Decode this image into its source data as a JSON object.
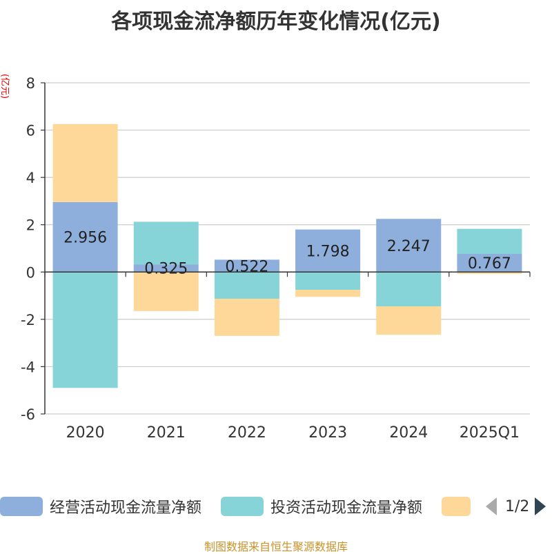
{
  "title": "各项现金流净额历年变化情况(亿元)",
  "unit_label": "(亿元)",
  "footer": "制图数据来自恒生聚源数据库",
  "legend": {
    "items": [
      {
        "label": "经营活动现金流量净额",
        "color": "#8eaedb"
      },
      {
        "label": "投资活动现金流量净额",
        "color": "#86d4d8"
      },
      {
        "label": "",
        "color": "#fed898"
      }
    ],
    "page_text": "1/2"
  },
  "chart_data": {
    "type": "bar",
    "stacked": true,
    "categories": [
      "2020",
      "2021",
      "2022",
      "2023",
      "2024",
      "2025Q1"
    ],
    "ylim": [
      -6,
      8
    ],
    "yticks": [
      8,
      6,
      4,
      2,
      0,
      -2,
      -4,
      -6
    ],
    "grid": true,
    "legend_position": "bottom",
    "series": [
      {
        "name": "经营活动现金流量净额",
        "color": "#8eaedb",
        "values": [
          2.956,
          0.325,
          0.522,
          1.798,
          2.247,
          0.767
        ],
        "labels": [
          "2.956",
          "0.325",
          "0.522",
          "1.798",
          "2.247",
          "0.767"
        ]
      },
      {
        "name": "投资活动现金流量净额",
        "color": "#86d4d8",
        "values": [
          -4.9,
          1.8,
          -1.13,
          -0.75,
          -1.45,
          1.06
        ]
      },
      {
        "color": "#fed898",
        "values": [
          3.3,
          -1.65,
          -1.57,
          -0.3,
          -1.2,
          -0.08
        ]
      }
    ]
  }
}
